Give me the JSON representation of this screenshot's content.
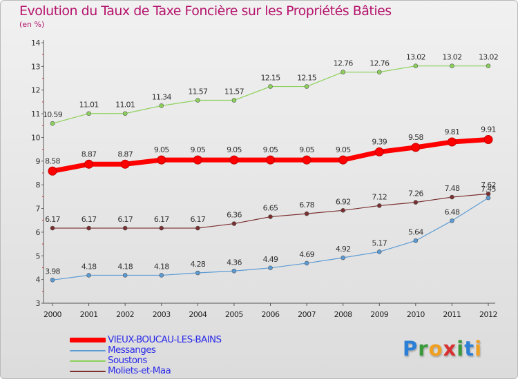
{
  "chart_data": {
    "type": "line",
    "title": "Evolution du Taux de Taxe Foncière sur les Propriétés Bâties",
    "subtitle": "(en %)",
    "xlabel": "",
    "ylabel": "",
    "ylim": [
      3,
      14
    ],
    "yticks": [
      3,
      4,
      5,
      6,
      7,
      8,
      9,
      10,
      11,
      12,
      13,
      14
    ],
    "grid": false,
    "legend_position": "bottom-left",
    "x": [
      "2000",
      "2001",
      "2002",
      "2003",
      "2004",
      "2005",
      "2006",
      "2007",
      "2008",
      "2009",
      "2010",
      "2011",
      "2012"
    ],
    "series": [
      {
        "name": "VIEUX-BOUCAU-LES-BAINS",
        "color": "#ff0000",
        "values": [
          8.58,
          8.87,
          8.87,
          9.05,
          9.05,
          9.05,
          9.05,
          9.05,
          9.05,
          9.39,
          9.58,
          9.81,
          9.91
        ],
        "labels": [
          "8.58",
          "8.87",
          "8.87",
          "9.05",
          "9.05",
          "9.05",
          "9.05",
          "9.05",
          "9.05",
          "9.39",
          "9.58",
          "9.81",
          "9.91"
        ]
      },
      {
        "name": "Messanges",
        "color": "#5b9bd5",
        "values": [
          3.98,
          4.18,
          4.18,
          4.18,
          4.28,
          4.36,
          4.49,
          4.69,
          4.92,
          5.17,
          5.64,
          6.48,
          7.45
        ],
        "labels": [
          "3.98",
          "4.18",
          "4.18",
          "4.18",
          "4.28",
          "4.36",
          "4.49",
          "4.69",
          "4.92",
          "5.17",
          "5.64",
          "6.48",
          "7.45"
        ]
      },
      {
        "name": "Soustons",
        "color": "#8cd15a",
        "values": [
          10.59,
          11.01,
          11.01,
          11.34,
          11.57,
          11.57,
          12.15,
          12.15,
          12.76,
          12.76,
          13.02,
          13.02,
          13.02
        ],
        "labels": [
          "10.59",
          "11.01",
          "11.01",
          "11.34",
          "11.57",
          "11.57",
          "12.15",
          "12.15",
          "12.76",
          "12.76",
          "13.02",
          "13.02",
          "13.02"
        ]
      },
      {
        "name": "Moliets-et-Maa",
        "color": "#7a2e2e",
        "values": [
          6.17,
          6.17,
          6.17,
          6.17,
          6.17,
          6.36,
          6.65,
          6.78,
          6.92,
          7.12,
          7.26,
          7.48,
          7.62
        ],
        "labels": [
          "6.17",
          "6.17",
          "6.17",
          "6.17",
          "6.17",
          "6.36",
          "6.65",
          "6.78",
          "6.92",
          "7.12",
          "7.26",
          "7.48",
          "7.62"
        ]
      }
    ]
  },
  "logo": {
    "letters": [
      "P",
      "r",
      "o",
      "x",
      "i",
      "t",
      "i"
    ],
    "colors": [
      "#2c7fd6",
      "#3a9a3a",
      "#f0a020",
      "#d83030",
      "#3a9a3a",
      "#2c7fd6",
      "#f0a020"
    ]
  }
}
